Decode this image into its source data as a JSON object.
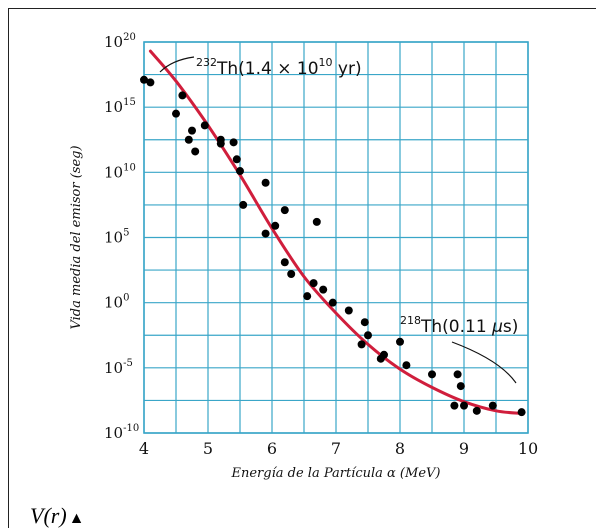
{
  "chart_data": {
    "type": "scatter",
    "x_scale": "linear",
    "y_scale": "log",
    "xlim": [
      4,
      10
    ],
    "ylim": [
      1e-10,
      1e+20
    ],
    "x_ticks": [
      "4",
      "5",
      "6",
      "7",
      "8",
      "9",
      "10"
    ],
    "y_ticks": [
      {
        "base": "10",
        "exp": "-10"
      },
      {
        "base": "10",
        "exp": "-5"
      },
      {
        "base": "10",
        "exp": "0"
      },
      {
        "base": "10",
        "exp": "5"
      },
      {
        "base": "10",
        "exp": "10"
      },
      {
        "base": "10",
        "exp": "15"
      },
      {
        "base": "10",
        "exp": "20"
      }
    ],
    "xlabel": "Energía de la Partícula α (MeV)",
    "ylabel": "Vida media del emisor (seg)",
    "grid": true,
    "grid_color": "#3aa6c8",
    "curve_color": "#d01e3c",
    "point_color": "#000000",
    "points": [
      [
        4.0,
        17.1
      ],
      [
        4.1,
        16.9
      ],
      [
        4.5,
        14.5
      ],
      [
        4.6,
        15.9
      ],
      [
        4.7,
        12.5
      ],
      [
        4.75,
        13.2
      ],
      [
        4.8,
        11.6
      ],
      [
        4.95,
        13.6
      ],
      [
        5.2,
        12.2
      ],
      [
        5.2,
        12.5
      ],
      [
        5.4,
        12.3
      ],
      [
        5.45,
        11.0
      ],
      [
        5.5,
        10.1
      ],
      [
        5.55,
        7.5
      ],
      [
        5.9,
        9.2
      ],
      [
        5.9,
        5.3
      ],
      [
        6.05,
        5.9
      ],
      [
        6.2,
        7.1
      ],
      [
        6.2,
        3.1
      ],
      [
        6.3,
        2.2
      ],
      [
        6.55,
        0.5
      ],
      [
        6.65,
        1.5
      ],
      [
        6.7,
        6.2
      ],
      [
        6.8,
        1.0
      ],
      [
        6.95,
        0.0
      ],
      [
        7.2,
        -0.6
      ],
      [
        7.4,
        -3.2
      ],
      [
        7.45,
        -1.5
      ],
      [
        7.5,
        -2.5
      ],
      [
        7.7,
        -4.3
      ],
      [
        7.75,
        -4.0
      ],
      [
        8.0,
        -3.0
      ],
      [
        8.1,
        -4.8
      ],
      [
        8.5,
        -5.5
      ],
      [
        8.85,
        -7.9
      ],
      [
        8.9,
        -5.5
      ],
      [
        8.95,
        -6.4
      ],
      [
        9.0,
        -7.9
      ],
      [
        9.2,
        -8.3
      ],
      [
        9.45,
        -7.9
      ],
      [
        9.9,
        -8.4
      ]
    ],
    "fit_curve": [
      [
        4.1,
        19.3
      ],
      [
        4.5,
        17.0
      ],
      [
        5.0,
        13.6
      ],
      [
        5.5,
        9.8
      ],
      [
        6.0,
        5.7
      ],
      [
        6.5,
        2.0
      ],
      [
        7.0,
        -0.8
      ],
      [
        7.5,
        -3.2
      ],
      [
        8.0,
        -5.1
      ],
      [
        8.5,
        -6.5
      ],
      [
        9.0,
        -7.6
      ],
      [
        9.5,
        -8.3
      ],
      [
        9.9,
        -8.5
      ]
    ],
    "annotations": [
      {
        "pre_sup": "232",
        "element": "Th",
        "value": "(1.4 × 10",
        "value_sup": "10",
        "unit": " yr)"
      },
      {
        "pre_sup": "218",
        "element": "Th",
        "value": "(0.11 ",
        "mu": "μ",
        "unit": "s)"
      }
    ]
  },
  "footer": {
    "formula": "V(r)",
    "arrow": "▲"
  }
}
